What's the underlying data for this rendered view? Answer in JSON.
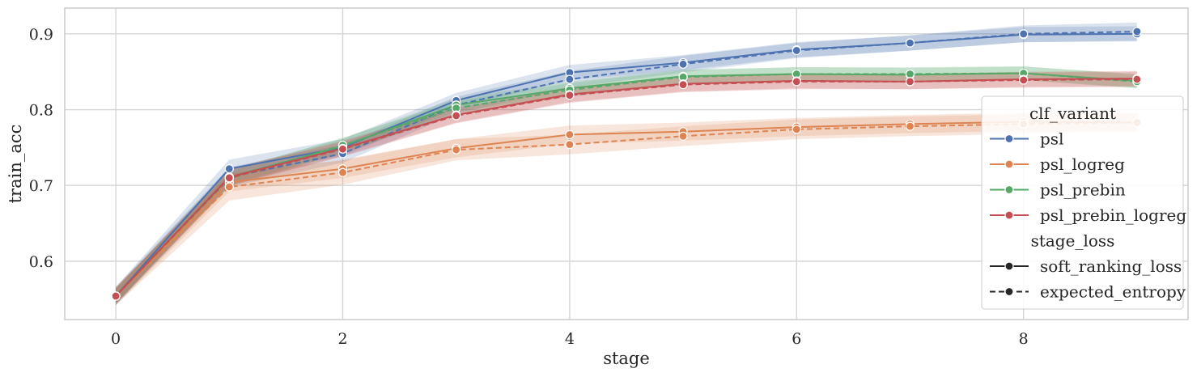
{
  "chart_data": {
    "type": "line",
    "title": "",
    "xlabel": "stage",
    "ylabel": "train_acc",
    "xlim": [
      -0.45,
      9.45
    ],
    "ylim": [
      0.523,
      0.934
    ],
    "x_ticks": [
      0,
      2,
      4,
      6,
      8
    ],
    "y_ticks": [
      0.6,
      0.7,
      0.8,
      0.9
    ],
    "x_tick_labels": [
      "0",
      "2",
      "4",
      "6",
      "8"
    ],
    "y_tick_labels": [
      "0.6",
      "0.7",
      "0.8",
      "0.9"
    ],
    "grid": true,
    "legend_position": "right",
    "legend": {
      "hue_title": "clf_variant",
      "style_title": "stage_loss",
      "style_entries": [
        "soft_ranking_loss",
        "expected_entropy"
      ]
    },
    "x": [
      0,
      1,
      2,
      3,
      4,
      5,
      6,
      7,
      8,
      9
    ],
    "series": [
      {
        "name": "psl",
        "color": "#4c72b0",
        "stage_loss": "soft_ranking_loss",
        "values": [
          0.554,
          0.722,
          0.75,
          0.812,
          0.849,
          0.862,
          0.879,
          0.888,
          0.899,
          0.9
        ],
        "ci_half": [
          0.012,
          0.012,
          0.011,
          0.01,
          0.01,
          0.01,
          0.01,
          0.01,
          0.01,
          0.01
        ]
      },
      {
        "name": "psl",
        "color": "#4c72b0",
        "stage_loss": "expected_entropy",
        "values": [
          0.554,
          0.711,
          0.742,
          0.806,
          0.84,
          0.86,
          0.878,
          0.888,
          0.9,
          0.903
        ],
        "ci_half": [
          0.012,
          0.013,
          0.012,
          0.011,
          0.011,
          0.011,
          0.01,
          0.01,
          0.011,
          0.012
        ]
      },
      {
        "name": "psl_logreg",
        "color": "#dd8452",
        "stage_loss": "soft_ranking_loss",
        "values": [
          0.554,
          0.704,
          0.722,
          0.749,
          0.767,
          0.771,
          0.777,
          0.781,
          0.784,
          0.783
        ],
        "ci_half": [
          0.012,
          0.012,
          0.012,
          0.012,
          0.012,
          0.012,
          0.012,
          0.012,
          0.012,
          0.012
        ]
      },
      {
        "name": "psl_logreg",
        "color": "#dd8452",
        "stage_loss": "expected_entropy",
        "values": [
          0.554,
          0.698,
          0.717,
          0.747,
          0.754,
          0.765,
          0.774,
          0.778,
          0.781,
          0.783
        ],
        "ci_half": [
          0.012,
          0.018,
          0.016,
          0.014,
          0.013,
          0.013,
          0.013,
          0.013,
          0.013,
          0.013
        ]
      },
      {
        "name": "psl_prebin",
        "color": "#55a868",
        "stage_loss": "soft_ranking_loss",
        "values": [
          0.554,
          0.711,
          0.752,
          0.806,
          0.828,
          0.844,
          0.847,
          0.846,
          0.848,
          0.838
        ],
        "ci_half": [
          0.01,
          0.01,
          0.01,
          0.009,
          0.009,
          0.009,
          0.009,
          0.009,
          0.009,
          0.009
        ]
      },
      {
        "name": "psl_prebin",
        "color": "#55a868",
        "stage_loss": "expected_entropy",
        "values": [
          0.554,
          0.709,
          0.753,
          0.802,
          0.826,
          0.843,
          0.847,
          0.847,
          0.848,
          0.837
        ],
        "ci_half": [
          0.01,
          0.01,
          0.01,
          0.009,
          0.009,
          0.009,
          0.009,
          0.009,
          0.009,
          0.009
        ]
      },
      {
        "name": "psl_prebin_logreg",
        "color": "#c44e52",
        "stage_loss": "soft_ranking_loss",
        "values": [
          0.554,
          0.711,
          0.749,
          0.793,
          0.82,
          0.834,
          0.838,
          0.837,
          0.84,
          0.841
        ],
        "ci_half": [
          0.01,
          0.011,
          0.01,
          0.01,
          0.01,
          0.01,
          0.01,
          0.01,
          0.01,
          0.01
        ]
      },
      {
        "name": "psl_prebin_logreg",
        "color": "#c44e52",
        "stage_loss": "expected_entropy",
        "values": [
          0.554,
          0.71,
          0.748,
          0.792,
          0.819,
          0.833,
          0.837,
          0.837,
          0.839,
          0.84
        ],
        "ci_half": [
          0.01,
          0.011,
          0.01,
          0.01,
          0.01,
          0.01,
          0.01,
          0.01,
          0.01,
          0.01
        ]
      }
    ],
    "hue_entries": [
      {
        "name": "psl",
        "color": "#4c72b0"
      },
      {
        "name": "psl_logreg",
        "color": "#dd8452"
      },
      {
        "name": "psl_prebin",
        "color": "#55a868"
      },
      {
        "name": "psl_prebin_logreg",
        "color": "#c44e52"
      }
    ],
    "style_marker_color": "#262626",
    "grid_color": "#d5d5d5",
    "frame_color": "#cccccc"
  }
}
